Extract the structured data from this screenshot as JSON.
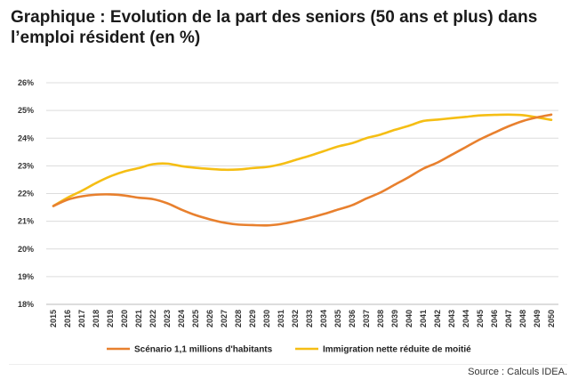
{
  "title_lines": [
    "Graphique : Evolution de la part des seniors (50 ans et plus) dans",
    "l’emploi résident (en %)"
  ],
  "source": "Source : Calculs IDEA.",
  "colors": {
    "scenario": "#E8802E",
    "immigration": "#F5BE14",
    "grid": "#DCDCDC",
    "axis": "#BBBBBB"
  },
  "chart_data": {
    "type": "line",
    "title": "Graphique : Evolution de la part des seniors (50 ans et plus) dans l’emploi résident (en %)",
    "xlabel": "",
    "ylabel": "",
    "ylim": [
      18,
      26
    ],
    "yticks": [
      18,
      19,
      20,
      21,
      22,
      23,
      24,
      25,
      26
    ],
    "ytick_labels": [
      "18%",
      "19%",
      "20%",
      "21%",
      "22%",
      "23%",
      "24%",
      "25%",
      "26%"
    ],
    "grid": true,
    "legend_position": "bottom",
    "x": [
      2015,
      2016,
      2017,
      2018,
      2019,
      2020,
      2021,
      2022,
      2023,
      2024,
      2025,
      2026,
      2027,
      2028,
      2029,
      2030,
      2031,
      2032,
      2033,
      2034,
      2035,
      2036,
      2037,
      2038,
      2039,
      2040,
      2041,
      2042,
      2043,
      2044,
      2045,
      2046,
      2047,
      2048,
      2049,
      2050
    ],
    "series": [
      {
        "name": "Scénario 1,1 millions d'habitants",
        "color": "#E8802E",
        "values": [
          21.55,
          21.78,
          21.9,
          21.96,
          21.97,
          21.93,
          21.85,
          21.8,
          21.65,
          21.42,
          21.22,
          21.07,
          20.95,
          20.88,
          20.86,
          20.85,
          20.9,
          21.0,
          21.12,
          21.26,
          21.42,
          21.58,
          21.82,
          22.04,
          22.32,
          22.6,
          22.9,
          23.12,
          23.4,
          23.68,
          23.96,
          24.2,
          24.43,
          24.62,
          24.75,
          24.85
        ]
      },
      {
        "name": "Immigration nette réduite de moitié",
        "color": "#F5BE14",
        "values": [
          21.55,
          21.85,
          22.1,
          22.38,
          22.62,
          22.8,
          22.92,
          23.06,
          23.08,
          22.99,
          22.93,
          22.89,
          22.86,
          22.87,
          22.92,
          22.96,
          23.06,
          23.21,
          23.36,
          23.53,
          23.7,
          23.82,
          24.0,
          24.13,
          24.3,
          24.45,
          24.62,
          24.67,
          24.72,
          24.77,
          24.82,
          24.84,
          24.85,
          24.83,
          24.75,
          24.66
        ]
      }
    ]
  }
}
